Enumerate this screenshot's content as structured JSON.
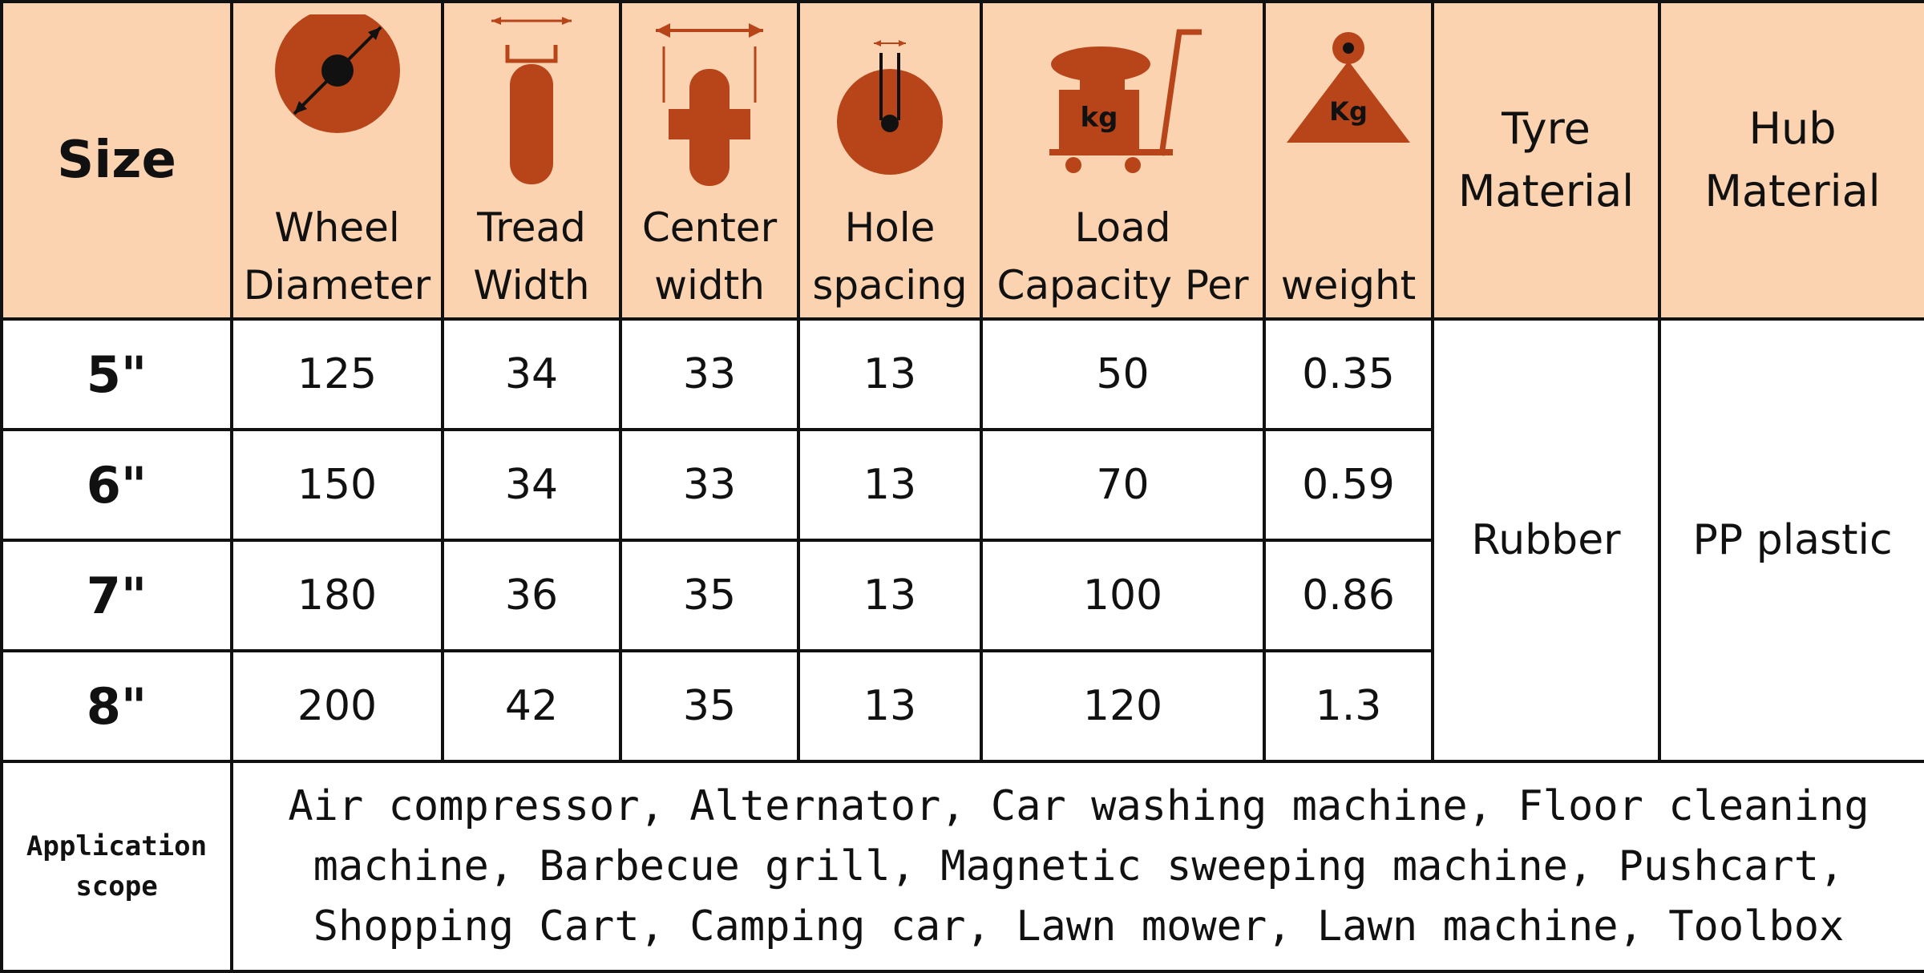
{
  "header": {
    "size": "Size",
    "columns": [
      {
        "icon": "wheel-diameter-icon",
        "line1": "Wheel",
        "line2": "Diameter"
      },
      {
        "icon": "tread-width-icon",
        "line1": "Tread",
        "line2": "Width"
      },
      {
        "icon": "center-width-icon",
        "line1": "Center",
        "line2": "width"
      },
      {
        "icon": "hole-spacing-icon",
        "line1": "Hole",
        "line2": "spacing"
      },
      {
        "icon": "load-capacity-icon",
        "line1": "Load",
        "line2": "Capacity Per"
      },
      {
        "icon": "weight-icon",
        "line1": "",
        "line2": "weight"
      }
    ],
    "tyre": {
      "line1": "Tyre",
      "line2": "Material"
    },
    "hub": {
      "line1": "Hub",
      "line2": "Material"
    },
    "icon_labels": {
      "cart": "kg",
      "weight": "Kg"
    }
  },
  "rows": [
    {
      "size": "5\"",
      "diameter": "125",
      "tread": "34",
      "center": "33",
      "hole": "13",
      "load": "50",
      "weight": "0.35"
    },
    {
      "size": "6\"",
      "diameter": "150",
      "tread": "34",
      "center": "33",
      "hole": "13",
      "load": "70",
      "weight": "0.59"
    },
    {
      "size": "7\"",
      "diameter": "180",
      "tread": "36",
      "center": "35",
      "hole": "13",
      "load": "100",
      "weight": "0.86"
    },
    {
      "size": "8\"",
      "diameter": "200",
      "tread": "42",
      "center": "35",
      "hole": "13",
      "load": "120",
      "weight": "1.3"
    }
  ],
  "materials": {
    "tyre": "Rubber",
    "hub": "PP plastic"
  },
  "application": {
    "label_line1": "Application",
    "label_line2": "scope",
    "lines": [
      "Air compressor, Alternator, Car washing machine, Floor cleaning",
      "machine, Barbecue grill, Magnetic sweeping machine, Pushcart,",
      "Shopping Cart, Camping car, Lawn mower, Lawn machine, Toolbox"
    ]
  },
  "colors": {
    "header_bg": "#fbd3b0",
    "icon": "#b8451a",
    "border": "#111111"
  }
}
